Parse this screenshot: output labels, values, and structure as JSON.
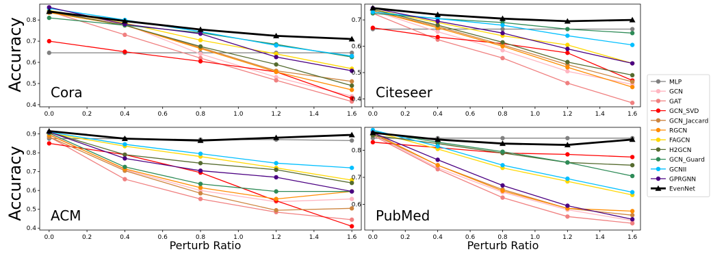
{
  "figure": {
    "y_axis_label": "Accuracy",
    "x_axis_label": "Perturb Ratio"
  },
  "legend": {
    "entries": [
      {
        "name": "MLP",
        "color": "#808080",
        "marker": "circle"
      },
      {
        "name": "GCN",
        "color": "#ffb6c1",
        "marker": "circle"
      },
      {
        "name": "GAT",
        "color": "#f08080",
        "marker": "circle"
      },
      {
        "name": "GCN_SVD",
        "color": "#ff0000",
        "marker": "circle"
      },
      {
        "name": "GCN_Jaccard",
        "color": "#cd853f",
        "marker": "circle"
      },
      {
        "name": "RGCN",
        "color": "#ff8c00",
        "marker": "circle"
      },
      {
        "name": "FAGCN",
        "color": "#ffd700",
        "marker": "circle"
      },
      {
        "name": "H2GCN",
        "color": "#556b2f",
        "marker": "circle"
      },
      {
        "name": "GCN_Guard",
        "color": "#2e8b57",
        "marker": "circle"
      },
      {
        "name": "GCNII",
        "color": "#00bfff",
        "marker": "circle"
      },
      {
        "name": "GPRGNN",
        "color": "#4b0082",
        "marker": "circle"
      },
      {
        "name": "EvenNet",
        "color": "#000000",
        "marker": "triangle"
      }
    ]
  },
  "chart_data": [
    {
      "type": "line",
      "title": "Cora",
      "x": [
        0.0,
        0.4,
        0.8,
        1.2,
        1.6
      ],
      "xticks": [
        "0.0",
        "0.2",
        "0.4",
        "0.6",
        "0.8",
        "1.0",
        "1.2",
        "1.4",
        "1.6"
      ],
      "ylim": [
        0.39,
        0.875
      ],
      "yticks": [
        "0.4",
        "0.5",
        "0.6",
        "0.7",
        "0.8"
      ],
      "series": [
        {
          "name": "MLP",
          "values": [
            0.645,
            0.645,
            0.645,
            0.645,
            0.645
          ]
        },
        {
          "name": "GCN",
          "values": [
            0.84,
            0.78,
            0.64,
            0.53,
            0.44
          ]
        },
        {
          "name": "GAT",
          "values": [
            0.84,
            0.73,
            0.62,
            0.515,
            0.415
          ]
        },
        {
          "name": "GCN_SVD",
          "values": [
            0.7,
            0.65,
            0.605,
            0.555,
            0.43
          ]
        },
        {
          "name": "GCN_Jaccard",
          "values": [
            0.835,
            0.775,
            0.67,
            0.56,
            0.51
          ]
        },
        {
          "name": "RGCN",
          "values": [
            0.835,
            0.775,
            0.665,
            0.555,
            0.47
          ]
        },
        {
          "name": "FAGCN",
          "values": [
            0.845,
            0.785,
            0.705,
            0.64,
            0.57
          ]
        },
        {
          "name": "H2GCN",
          "values": [
            0.84,
            0.775,
            0.675,
            0.59,
            0.49
          ]
        },
        {
          "name": "GCN_Guard",
          "values": [
            0.81,
            0.775,
            0.74,
            0.685,
            0.625
          ]
        },
        {
          "name": "GCNII",
          "values": [
            0.855,
            0.8,
            0.745,
            0.68,
            0.63
          ]
        },
        {
          "name": "GPRGNN",
          "values": [
            0.86,
            0.78,
            0.735,
            0.625,
            0.56
          ]
        },
        {
          "name": "EvenNet",
          "values": [
            0.84,
            0.795,
            0.755,
            0.725,
            0.71
          ]
        }
      ]
    },
    {
      "type": "line",
      "title": "Citeseer",
      "x": [
        0.0,
        0.4,
        0.8,
        1.2,
        1.6
      ],
      "xticks": [
        "0.0",
        "0.2",
        "0.4",
        "0.6",
        "0.8",
        "1.0",
        "1.2",
        "1.4",
        "1.6"
      ],
      "ylim": [
        0.37,
        0.76
      ],
      "yticks": [
        "0.4",
        "0.5",
        "0.6",
        "0.7"
      ],
      "series": [
        {
          "name": "MLP",
          "values": [
            0.665,
            0.665,
            0.665,
            0.665,
            0.665
          ]
        },
        {
          "name": "GCN",
          "values": [
            0.735,
            0.655,
            0.585,
            0.505,
            0.455
          ]
        },
        {
          "name": "GAT",
          "values": [
            0.725,
            0.625,
            0.555,
            0.46,
            0.385
          ]
        },
        {
          "name": "GCN_SVD",
          "values": [
            0.67,
            0.635,
            0.61,
            0.575,
            0.47
          ]
        },
        {
          "name": "GCN_Jaccard",
          "values": [
            0.735,
            0.675,
            0.605,
            0.53,
            0.465
          ]
        },
        {
          "name": "RGCN",
          "values": [
            0.735,
            0.67,
            0.6,
            0.52,
            0.445
          ]
        },
        {
          "name": "FAGCN",
          "values": [
            0.74,
            0.69,
            0.64,
            0.605,
            0.535
          ]
        },
        {
          "name": "H2GCN",
          "values": [
            0.74,
            0.68,
            0.615,
            0.54,
            0.49
          ]
        },
        {
          "name": "GCN_Guard",
          "values": [
            0.725,
            0.705,
            0.69,
            0.665,
            0.65
          ]
        },
        {
          "name": "GCNII",
          "values": [
            0.73,
            0.705,
            0.68,
            0.64,
            0.605
          ]
        },
        {
          "name": "GPRGNN",
          "values": [
            0.745,
            0.695,
            0.65,
            0.59,
            0.535
          ]
        },
        {
          "name": "EvenNet",
          "values": [
            0.745,
            0.72,
            0.705,
            0.695,
            0.7
          ]
        }
      ]
    },
    {
      "type": "line",
      "title": "ACM",
      "x": [
        0.0,
        0.4,
        0.8,
        1.2,
        1.6
      ],
      "xticks": [
        "0.0",
        "0.2",
        "0.4",
        "0.6",
        "0.8",
        "1.0",
        "1.2",
        "1.4",
        "1.6"
      ],
      "ylim": [
        0.39,
        0.935
      ],
      "yticks": [
        "0.4",
        "0.5",
        "0.6",
        "0.7",
        "0.8",
        "0.9"
      ],
      "series": [
        {
          "name": "MLP",
          "values": [
            0.875,
            0.875,
            0.87,
            0.87,
            0.865
          ]
        },
        {
          "name": "GCN",
          "values": [
            0.9,
            0.71,
            0.6,
            0.54,
            0.555
          ]
        },
        {
          "name": "GAT",
          "values": [
            0.885,
            0.66,
            0.555,
            0.485,
            0.445
          ]
        },
        {
          "name": "GCN_SVD",
          "values": [
            0.85,
            0.79,
            0.695,
            0.545,
            0.41
          ]
        },
        {
          "name": "GCN_Jaccard",
          "values": [
            0.885,
            0.705,
            0.585,
            0.495,
            0.505
          ]
        },
        {
          "name": "RGCN",
          "values": [
            0.895,
            0.715,
            0.615,
            0.555,
            0.595
          ]
        },
        {
          "name": "FAGCN",
          "values": [
            0.905,
            0.835,
            0.78,
            0.72,
            0.655
          ]
        },
        {
          "name": "H2GCN",
          "values": [
            0.91,
            0.79,
            0.745,
            0.71,
            0.64
          ]
        },
        {
          "name": "GCN_Guard",
          "values": [
            0.905,
            0.725,
            0.635,
            0.595,
            0.595
          ]
        },
        {
          "name": "GCNII",
          "values": [
            0.91,
            0.845,
            0.795,
            0.745,
            0.72
          ]
        },
        {
          "name": "GPRGNN",
          "values": [
            0.91,
            0.77,
            0.705,
            0.67,
            0.595
          ]
        },
        {
          "name": "EvenNet",
          "values": [
            0.915,
            0.875,
            0.865,
            0.88,
            0.895
          ]
        }
      ]
    },
    {
      "type": "line",
      "title": "PubMed",
      "x": [
        0.0,
        0.4,
        0.8,
        1.2,
        1.6
      ],
      "xticks": [
        "0.0",
        "0.2",
        "0.4",
        "0.6",
        "0.8",
        "1.0",
        "1.2",
        "1.4",
        "1.6"
      ],
      "ylim": [
        0.505,
        0.885
      ],
      "yticks": [
        "0.6",
        "0.7",
        "0.8"
      ],
      "series": [
        {
          "name": "MLP",
          "values": [
            0.845,
            0.845,
            0.845,
            0.845,
            0.845
          ]
        },
        {
          "name": "GCN",
          "values": [
            0.86,
            0.735,
            0.645,
            0.58,
            0.54
          ]
        },
        {
          "name": "GAT",
          "values": [
            0.855,
            0.73,
            0.625,
            0.555,
            0.53
          ]
        },
        {
          "name": "GCN_SVD",
          "values": [
            0.83,
            0.81,
            0.79,
            0.785,
            0.775
          ]
        },
        {
          "name": "GCN_Jaccard",
          "values": [
            0.86,
            0.745,
            0.655,
            0.585,
            0.56
          ]
        },
        {
          "name": "RGCN",
          "values": [
            0.865,
            0.745,
            0.65,
            0.585,
            0.575
          ]
        },
        {
          "name": "FAGCN",
          "values": [
            0.87,
            0.805,
            0.735,
            0.685,
            0.635
          ]
        },
        {
          "name": "H2GCN",
          "values": [
            0.855,
            0.825,
            0.79,
            0.755,
            0.745
          ]
        },
        {
          "name": "GCN_Guard",
          "values": [
            0.87,
            0.83,
            0.795,
            0.755,
            0.705
          ]
        },
        {
          "name": "GCNII",
          "values": [
            0.875,
            0.815,
            0.745,
            0.695,
            0.645
          ]
        },
        {
          "name": "GPRGNN",
          "values": [
            0.865,
            0.765,
            0.67,
            0.595,
            0.545
          ]
        },
        {
          "name": "EvenNet",
          "values": [
            0.865,
            0.84,
            0.825,
            0.82,
            0.84
          ]
        }
      ]
    }
  ]
}
